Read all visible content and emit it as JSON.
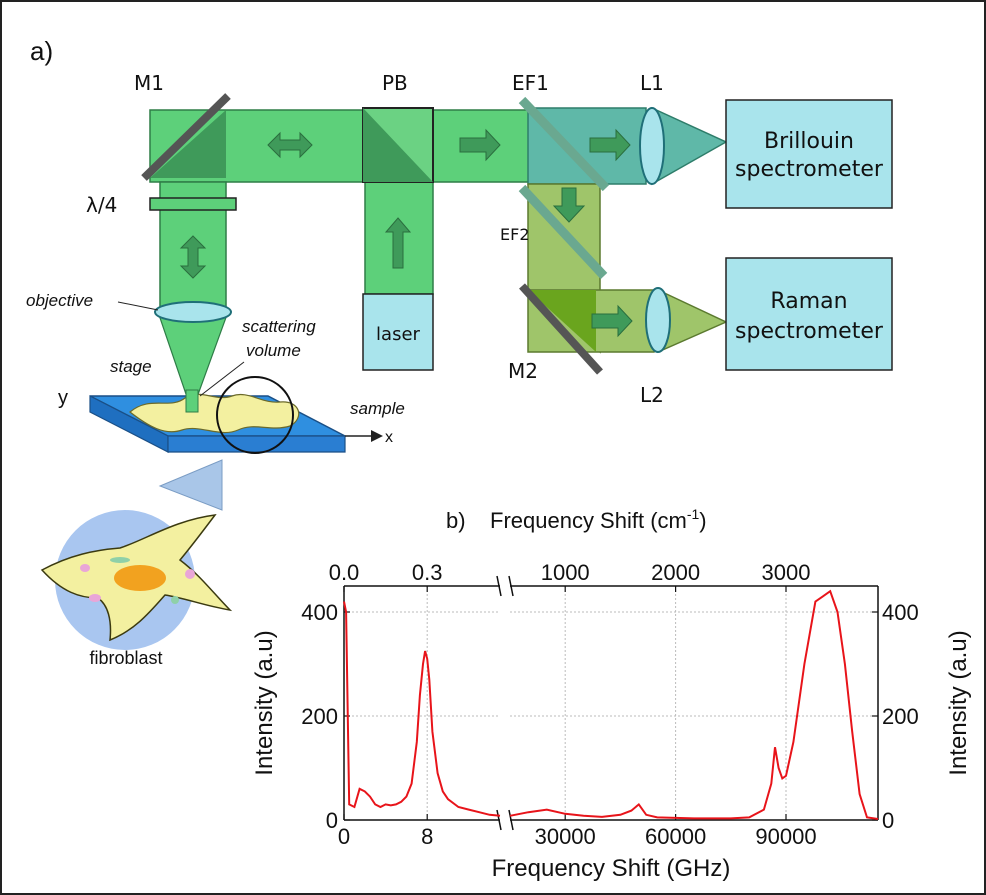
{
  "colors": {
    "beam_green": "#5dd07a",
    "beam_dark": "#3f9a5a",
    "beam_olive": "#9fc56a",
    "beam_teal": "#5fb8a8",
    "spectrometer_fill": "#a9e4ec",
    "stage_blue": "#2f8fe0",
    "cell_yellow": "#f3f0a0",
    "curve_red": "#e8141a"
  },
  "panel_a": {
    "label": "a)",
    "labels": {
      "m1": "M1",
      "pb": "PB",
      "ef1": "EF1",
      "ef2": "EF2",
      "l1": "L1",
      "l2": "L2",
      "m2": "M2",
      "lambda4": "λ/4",
      "objective": "objective",
      "scattering1": "scattering",
      "scattering2": "volume",
      "stage": "stage",
      "sample": "sample",
      "laser": "laser",
      "axis_y": "y",
      "axis_x": "x",
      "fibroblast": "fibroblast"
    },
    "brillouin": {
      "line1": "Brillouin",
      "line2": "spectrometer"
    },
    "raman": {
      "line1": "Raman",
      "line2": "spectrometer"
    }
  },
  "panel_b": {
    "label": "b)",
    "top_title": "Frequency Shift (cm",
    "top_title_sup": "-1",
    "top_title_end": ")"
  },
  "chart_data": {
    "type": "line",
    "xlabel": "Frequency Shift (GHz)",
    "ylabel": "Intensity (a.u)",
    "ylabel_right": "Intensity (a.u)",
    "ylim": [
      0,
      450
    ],
    "yticks": [
      "0",
      "200",
      "400"
    ],
    "grid": true,
    "axis_break": true,
    "left_segment": {
      "xlim": [
        0,
        15
      ],
      "bottom_ticks": [
        "0",
        "8"
      ],
      "bottom_tick_values": [
        0,
        8
      ],
      "top_ticks": [
        "0.0",
        "0.3"
      ],
      "top_tick_values": [
        0,
        8
      ],
      "x": [
        0,
        0.2,
        0.5,
        1,
        1.5,
        2,
        2.5,
        3,
        3.5,
        4,
        4.5,
        5,
        5.5,
        6,
        6.5,
        7,
        7.3,
        7.6,
        7.8,
        8,
        8.2,
        8.5,
        9,
        9.5,
        10,
        11,
        12,
        13,
        14,
        15
      ],
      "y": [
        420,
        400,
        30,
        25,
        60,
        55,
        45,
        30,
        25,
        30,
        28,
        30,
        35,
        45,
        70,
        150,
        240,
        300,
        325,
        310,
        270,
        170,
        90,
        55,
        40,
        25,
        20,
        15,
        10,
        8
      ]
    },
    "right_segment": {
      "xlim": [
        15000,
        115000
      ],
      "bottom_ticks": [
        "30000",
        "60000",
        "90000"
      ],
      "bottom_tick_values": [
        30000,
        60000,
        90000
      ],
      "top_ticks": [
        "1000",
        "2000",
        "3000"
      ],
      "top_tick_values": [
        30000,
        60000,
        90000
      ],
      "x": [
        15000,
        20000,
        25000,
        30000,
        35000,
        40000,
        45000,
        48000,
        50000,
        52000,
        55000,
        60000,
        65000,
        70000,
        75000,
        80000,
        84000,
        86000,
        87000,
        88000,
        89000,
        90000,
        92000,
        95000,
        98000,
        100000,
        102000,
        104000,
        106000,
        108000,
        110000,
        112000,
        115000
      ],
      "y": [
        8,
        15,
        20,
        12,
        8,
        6,
        10,
        18,
        30,
        10,
        5,
        4,
        3,
        3,
        3,
        5,
        20,
        70,
        140,
        100,
        80,
        85,
        150,
        300,
        420,
        430,
        440,
        400,
        300,
        170,
        50,
        5,
        2
      ]
    }
  }
}
